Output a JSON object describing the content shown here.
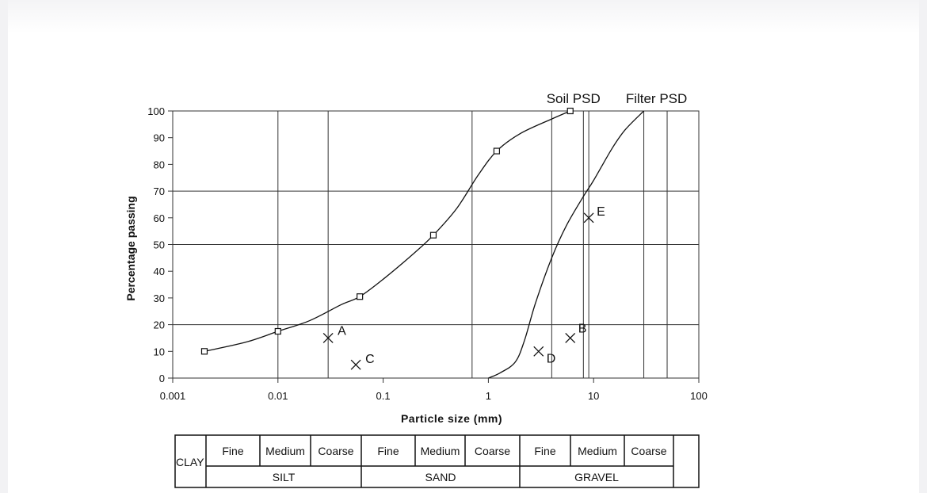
{
  "chart_data": {
    "type": "line",
    "title": "",
    "xlabel": "Particle size (mm)",
    "ylabel": "Percentage passing",
    "x_scale": "log",
    "xlim": [
      0.001,
      100
    ],
    "ylim": [
      0,
      100
    ],
    "x_ticks": [
      0.001,
      0.01,
      0.1,
      1,
      10,
      100
    ],
    "x_tick_labels": [
      "0.001",
      "0.01",
      "0.1",
      "1",
      "10",
      "100"
    ],
    "y_ticks": [
      0,
      10,
      20,
      30,
      40,
      50,
      60,
      70,
      80,
      90,
      100
    ],
    "y_tick_labels": [
      "0",
      "10",
      "20",
      "30",
      "40",
      "50",
      "60",
      "70",
      "80",
      "90",
      "100"
    ],
    "grid_x": [
      0.01,
      0.03,
      0.7,
      4,
      8,
      9,
      30,
      50
    ],
    "grid_y": [
      20,
      50,
      70,
      100
    ],
    "legend": "none",
    "series": [
      {
        "name": "Soil PSD",
        "marker": "square",
        "points": [
          [
            0.002,
            10
          ],
          [
            0.01,
            17.5
          ],
          [
            0.06,
            30.5
          ],
          [
            0.3,
            53.5
          ],
          [
            1.2,
            85
          ],
          [
            6,
            100
          ]
        ],
        "curve": [
          [
            0.002,
            10
          ],
          [
            0.005,
            13.5
          ],
          [
            0.01,
            17.5
          ],
          [
            0.02,
            21.5
          ],
          [
            0.04,
            27.5
          ],
          [
            0.06,
            30.5
          ],
          [
            0.1,
            37
          ],
          [
            0.2,
            47
          ],
          [
            0.3,
            53.5
          ],
          [
            0.5,
            63.5
          ],
          [
            0.8,
            76
          ],
          [
            1.2,
            85
          ],
          [
            2,
            91.5
          ],
          [
            4,
            97
          ],
          [
            6,
            100
          ]
        ]
      },
      {
        "name": "Filter PSD",
        "marker": "none",
        "points": [],
        "curve": [
          [
            1,
            0
          ],
          [
            1.3,
            2
          ],
          [
            1.8,
            6
          ],
          [
            2.2,
            14
          ],
          [
            2.8,
            28
          ],
          [
            4,
            45
          ],
          [
            5.5,
            57
          ],
          [
            8,
            68
          ],
          [
            10,
            74
          ],
          [
            15,
            86
          ],
          [
            20,
            93
          ],
          [
            30,
            100
          ]
        ]
      }
    ],
    "annotated_points": [
      {
        "label": "A",
        "x": 0.03,
        "y": 15
      },
      {
        "label": "B",
        "x": 6,
        "y": 15
      },
      {
        "label": "C",
        "x": 0.055,
        "y": 5
      },
      {
        "label": "D",
        "x": 3,
        "y": 10
      },
      {
        "label": "E",
        "x": 9,
        "y": 60
      }
    ]
  },
  "classification_table": {
    "clay_label": "CLAY",
    "groups": [
      {
        "name": "SILT",
        "subdivisions": [
          "Fine",
          "Medium",
          "Coarse"
        ]
      },
      {
        "name": "SAND",
        "subdivisions": [
          "Fine",
          "Medium",
          "Coarse"
        ]
      },
      {
        "name": "GRAVEL",
        "subdivisions": [
          "Fine",
          "Medium",
          "Coarse"
        ]
      }
    ]
  },
  "colors": {
    "line": "#111111",
    "grid": "#333333",
    "background": "#ffffff"
  }
}
